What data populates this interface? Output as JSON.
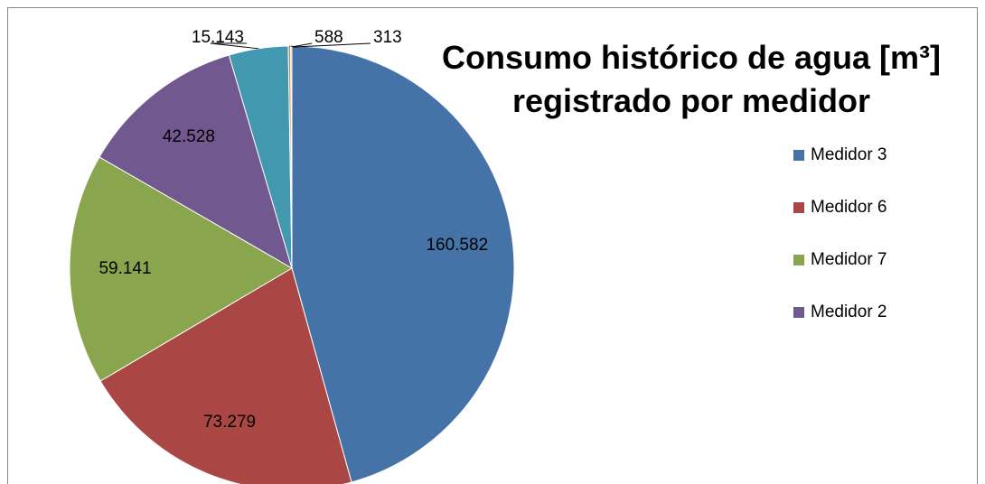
{
  "chart_data": {
    "type": "pie",
    "title": "Consumo histórico de agua [m³] registrado por medidor",
    "categories": [
      "Medidor 3",
      "Medidor 6",
      "Medidor 7",
      "Medidor 2",
      null,
      null,
      null
    ],
    "values": [
      160582,
      73279,
      59141,
      42528,
      15143,
      588,
      313
    ],
    "value_labels": [
      "160.582",
      "73.279",
      "59.141",
      "42.528",
      "15.143",
      "588",
      "313"
    ],
    "colors": [
      "#4572a7",
      "#aa4643",
      "#89a54e",
      "#71588f",
      "#4198af",
      "#db843d",
      "#93a9cf"
    ],
    "legend": "right"
  }
}
